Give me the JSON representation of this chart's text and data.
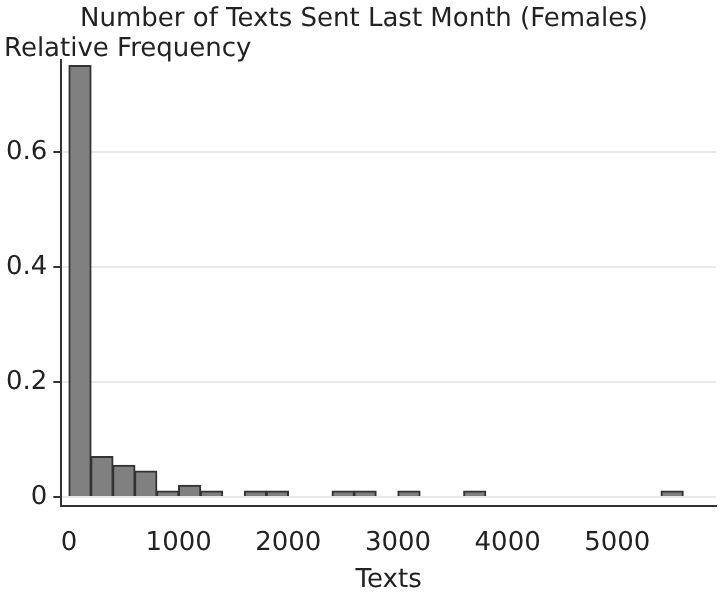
{
  "chart_data": {
    "type": "histogram",
    "title": "Number of Texts Sent Last Month (Females)",
    "xlabel": "Texts",
    "ylabel": "Relative Frequency",
    "bins": [
      0,
      200,
      400,
      600,
      800,
      1000,
      1200,
      1400,
      1600,
      1800,
      2000,
      2200,
      2400,
      2600,
      2800,
      3000,
      3200,
      3400,
      3600,
      3800,
      4000,
      4200,
      4400,
      4600,
      4800,
      5000,
      5200,
      5400,
      5600
    ],
    "values": [
      0.75,
      0.07,
      0.055,
      0.045,
      0.01,
      0.02,
      0.01,
      0,
      0.01,
      0.01,
      0,
      0,
      0.01,
      0.01,
      0,
      0.01,
      0,
      0,
      0.01,
      0,
      0,
      0,
      0,
      0,
      0,
      0,
      0,
      0.01
    ],
    "color": "#808080",
    "xlim": [
      -70,
      5900
    ],
    "xticks": [
      0,
      1000,
      2000,
      3000,
      4000,
      5000
    ],
    "ylim": [
      -0.015,
      0.76
    ],
    "yticks": [
      0,
      0.2,
      0.4,
      0.6
    ],
    "grid": "y",
    "legend": false
  }
}
